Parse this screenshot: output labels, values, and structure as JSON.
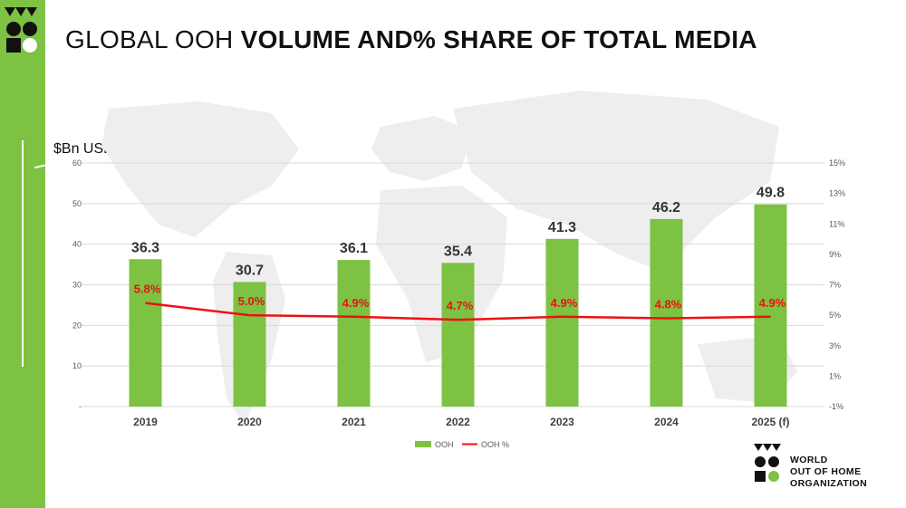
{
  "slide": {
    "title_light": "GLOBAL OOH",
    "title_bold": "VOLUME AND% SHARE OF TOTAL MEDIA",
    "unit_label": "$Bn USD"
  },
  "logo": {
    "line1": "WORLD",
    "line2": "OUT OF HOME",
    "line3": "ORGANIZATION"
  },
  "colors": {
    "accent": "#7dc242",
    "bar": "#7dc242",
    "line": "#ee1111",
    "bar_label": "#333333"
  },
  "chart_data": {
    "type": "bar",
    "categories": [
      "2019",
      "2020",
      "2021",
      "2022",
      "2023",
      "2024",
      "2025 (f)"
    ],
    "series": [
      {
        "name": "OOH",
        "type": "bar",
        "axis": "left",
        "values": [
          36.3,
          30.7,
          36.1,
          35.4,
          41.3,
          46.2,
          49.8
        ],
        "labels": [
          "36.3",
          "30.7",
          "36.1",
          "35.4",
          "41.3",
          "46.2",
          "49.8"
        ]
      },
      {
        "name": "OOH %",
        "type": "line",
        "axis": "right",
        "values": [
          5.8,
          5.0,
          4.9,
          4.7,
          4.9,
          4.8,
          4.9
        ],
        "labels": [
          "5.8%",
          "5.0%",
          "4.9%",
          "4.7%",
          "4.9%",
          "4.8%",
          "4.9%"
        ]
      }
    ],
    "y_left": {
      "ylim": [
        0,
        60
      ],
      "ticks": [
        "-",
        "10",
        "20",
        "30",
        "40",
        "50",
        "60"
      ]
    },
    "y_right": {
      "ylim": [
        -1,
        15
      ],
      "ticks": [
        "-1%",
        "1%",
        "3%",
        "5%",
        "7%",
        "9%",
        "11%",
        "13%",
        "15%"
      ]
    },
    "grid": true,
    "legend_position": "bottom"
  }
}
